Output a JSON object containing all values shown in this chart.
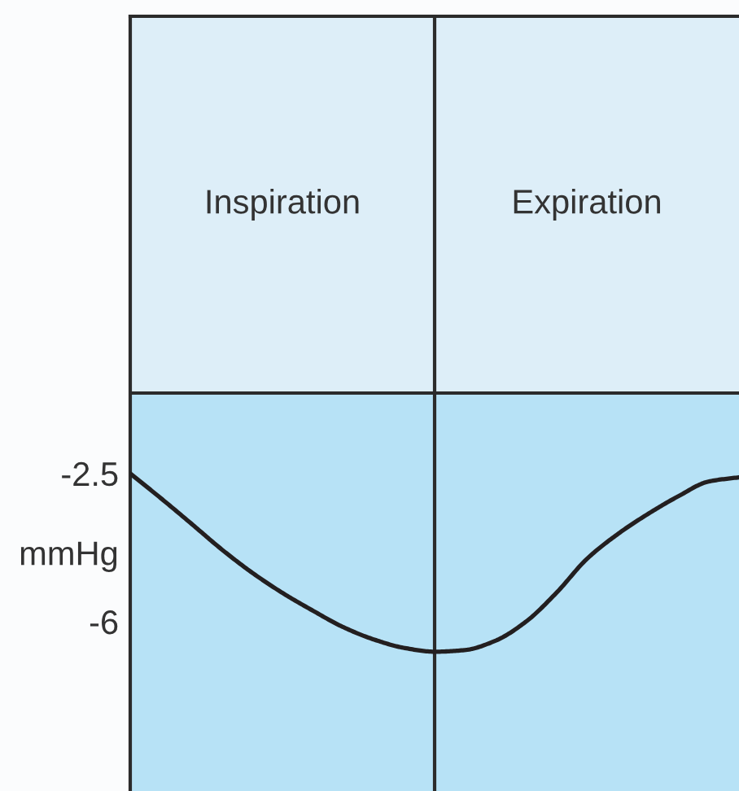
{
  "chart_data": {
    "type": "line",
    "categories": [
      null,
      null,
      null,
      null,
      null,
      null,
      null,
      null,
      null,
      null,
      null,
      null,
      null,
      null,
      null,
      null,
      null,
      null,
      null,
      null,
      null
    ],
    "values": [
      -2.5,
      -3.08,
      -3.68,
      -4.29,
      -4.84,
      -5.32,
      -5.74,
      -6.13,
      -6.42,
      -6.62,
      -6.71,
      -6.67,
      -6.45,
      -6.0,
      -5.32,
      -4.52,
      -3.94,
      -3.46,
      -3.04,
      -2.69,
      -2.59
    ],
    "color": "#231f20",
    "ylim": [
      -10,
      8.3
    ],
    "yticks": [
      -2.5,
      -6
    ],
    "ylabel": "mmHg",
    "bands": [
      {
        "axis": "y",
        "from": -0.6,
        "to": 8.3,
        "color": "#ddeef8"
      }
    ],
    "ref_lines": [
      {
        "axis": "y",
        "value": -0.6,
        "color": "#2b2b2b"
      }
    ],
    "annotations": [
      "Inspiration",
      "Expiration"
    ]
  }
}
